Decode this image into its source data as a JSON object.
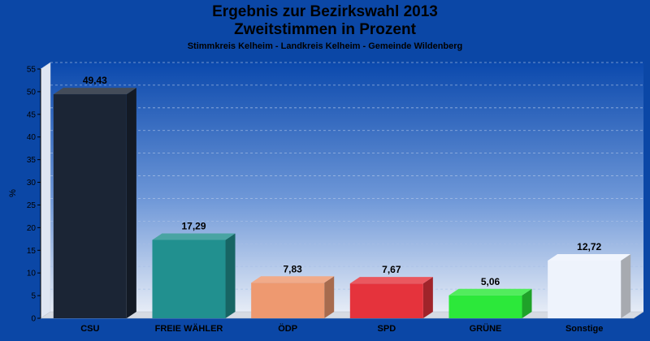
{
  "chart_data": {
    "type": "bar",
    "title_lines": [
      "Ergebnis zur Bezirkswahl 2013",
      "Zweitstimmen in Prozent"
    ],
    "subtitle": "Stimmkreis Kelheim - Landkreis Kelheim - Gemeinde Wildenberg",
    "ylabel": "%",
    "xlabel": "",
    "ylim": [
      0,
      55
    ],
    "yticks": [
      0,
      5,
      10,
      15,
      20,
      25,
      30,
      35,
      40,
      45,
      50,
      55
    ],
    "grid": true,
    "categories": [
      "CSU",
      "FREIE WÄHLER",
      "ÖDP",
      "SPD",
      "GRÜNE",
      "Sonstige"
    ],
    "values": [
      49.43,
      17.29,
      7.83,
      7.67,
      5.06,
      12.72
    ],
    "value_labels": [
      "49,43",
      "17,29",
      "7,83",
      "7,67",
      "5,06",
      "12,72"
    ],
    "colors": [
      "#1b2535",
      "#21908f",
      "#ee9970",
      "#e5333c",
      "#2ce83a",
      "#eef3fc"
    ]
  }
}
